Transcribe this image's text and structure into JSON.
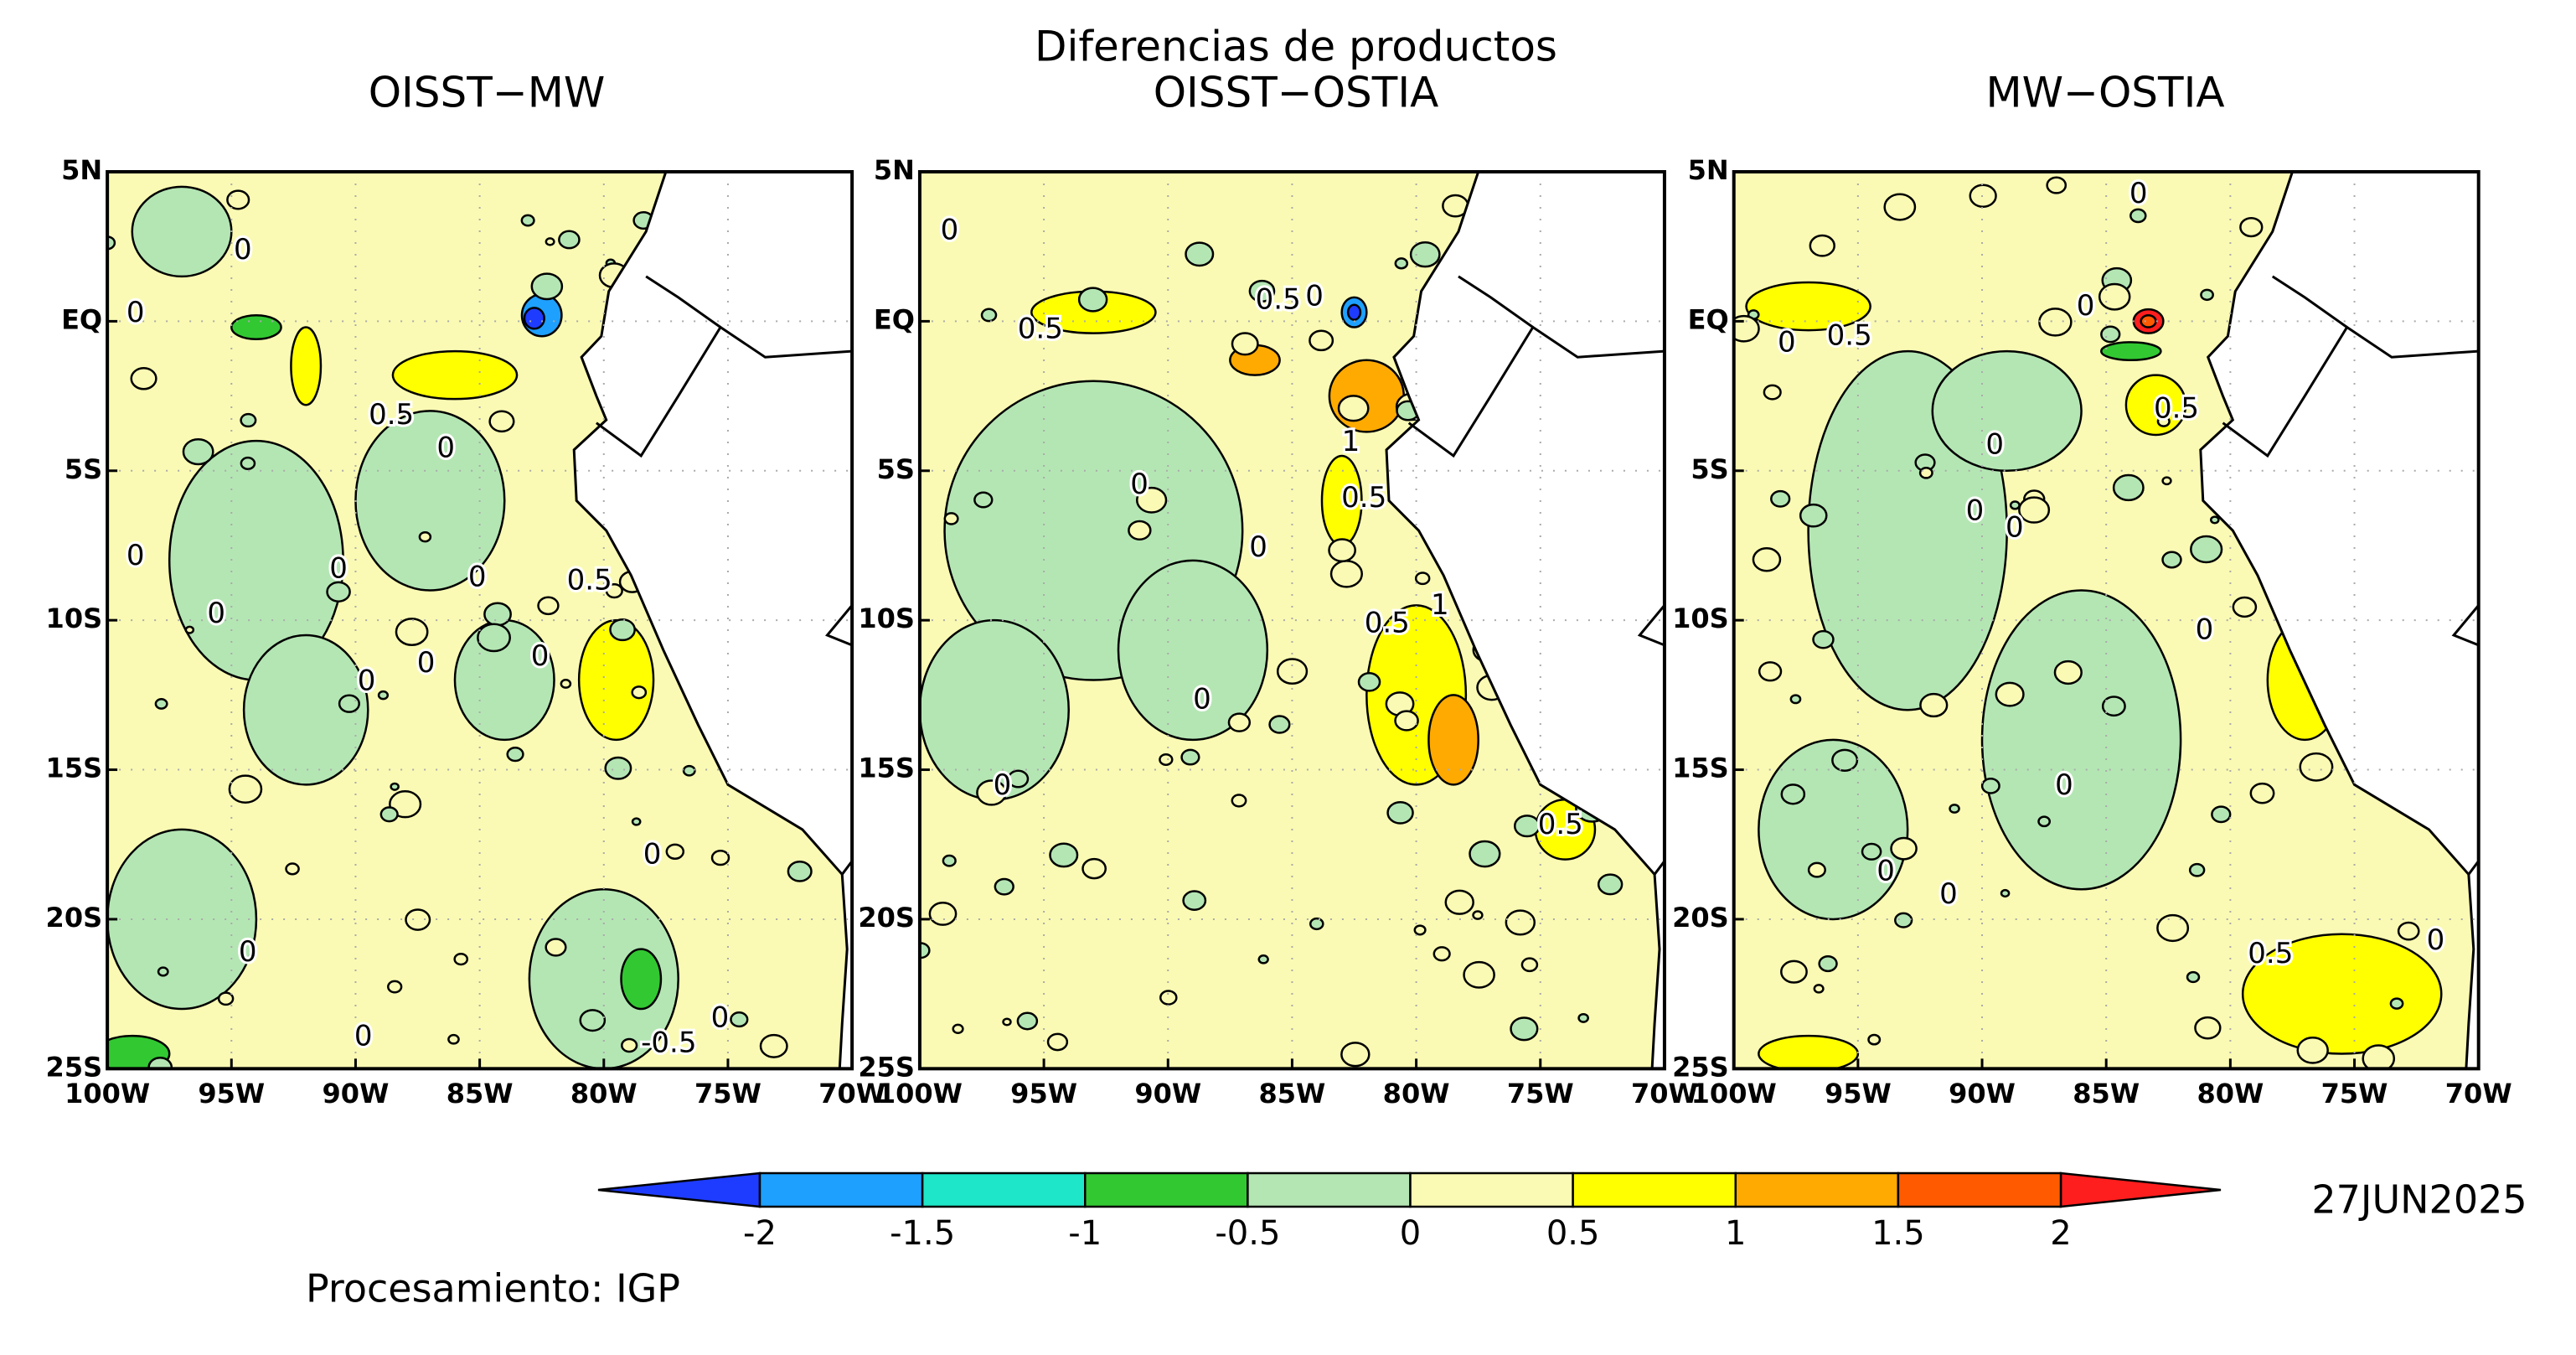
{
  "title": "Diferencias de productos",
  "panels": [
    {
      "title": "OISST−MW",
      "contour_labels": [
        0,
        0,
        0.5,
        0,
        0,
        0,
        0,
        0.5,
        0,
        0,
        0,
        0,
        0,
        0,
        0,
        0,
        -0.5
      ]
    },
    {
      "title": "OISST−OSTIA",
      "contour_labels": [
        0,
        0.5,
        0,
        0.5,
        1,
        0,
        0.5,
        0,
        1,
        0.5,
        0,
        0,
        0.5
      ]
    },
    {
      "title": "MW−OSTIA",
      "contour_labels": [
        0,
        0,
        0,
        0.5,
        0.5,
        0,
        0,
        0,
        0,
        0,
        0,
        0,
        0.5,
        0
      ]
    }
  ],
  "map_axes": {
    "xlim": [
      -100,
      -70
    ],
    "ylim": [
      -25,
      5
    ],
    "xticks": [
      {
        "value": -100,
        "label": "100W"
      },
      {
        "value": -95,
        "label": "95W"
      },
      {
        "value": -90,
        "label": "90W"
      },
      {
        "value": -85,
        "label": "85W"
      },
      {
        "value": -80,
        "label": "80W"
      },
      {
        "value": -75,
        "label": "75W"
      },
      {
        "value": -70,
        "label": "70W"
      }
    ],
    "yticks": [
      {
        "value": 5,
        "label": "5N"
      },
      {
        "value": 0,
        "label": "EQ"
      },
      {
        "value": -5,
        "label": "5S"
      },
      {
        "value": -10,
        "label": "10S"
      },
      {
        "value": -15,
        "label": "15S"
      },
      {
        "value": -20,
        "label": "20S"
      },
      {
        "value": -25,
        "label": "25S"
      }
    ]
  },
  "colorbar": {
    "levels": [
      -2,
      -1.5,
      -1,
      -0.5,
      0,
      0.5,
      1,
      1.5,
      2
    ],
    "colors": [
      "#1e3cff",
      "#1ea0ff",
      "#1ee6c8",
      "#32c832",
      "#b4e6b4",
      "#fafab4",
      "#ffff00",
      "#ffaa00",
      "#ff5a00",
      "#ff1e1e"
    ]
  },
  "date": "27JUN2025",
  "credit": "Procesamiento: IGP"
}
